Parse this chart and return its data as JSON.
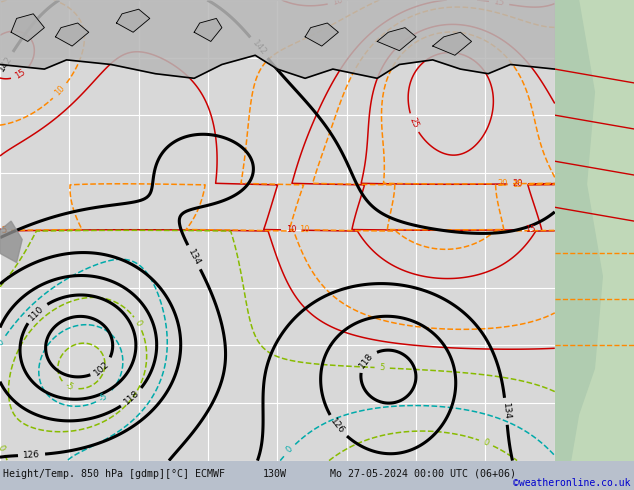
{
  "title_left": "Height/Temp. 850 hPa [gdmp][°C] ECMWF",
  "title_center": "130W",
  "title_right": "Mo 27-05-2024 00:00 UTC (06+06)",
  "copyright": "©weatheronline.co.uk",
  "fig_width": 6.34,
  "fig_height": 4.9,
  "dpi": 100,
  "bg_color": "#c8cfd8",
  "map_gray_color": "#d8d8d8",
  "ocean_color": "#d0d4dc",
  "land_top_color": "#c8c8c8",
  "land_right_color": "#c8dcc8",
  "grid_color": "#ffffff",
  "bottom_bar_color": "#b8c0cc",
  "title_fontsize": 7.2,
  "copyright_fontsize": 7.0,
  "black_lw": 2.2,
  "color_lw": 1.1,
  "label_fs": 6.5
}
